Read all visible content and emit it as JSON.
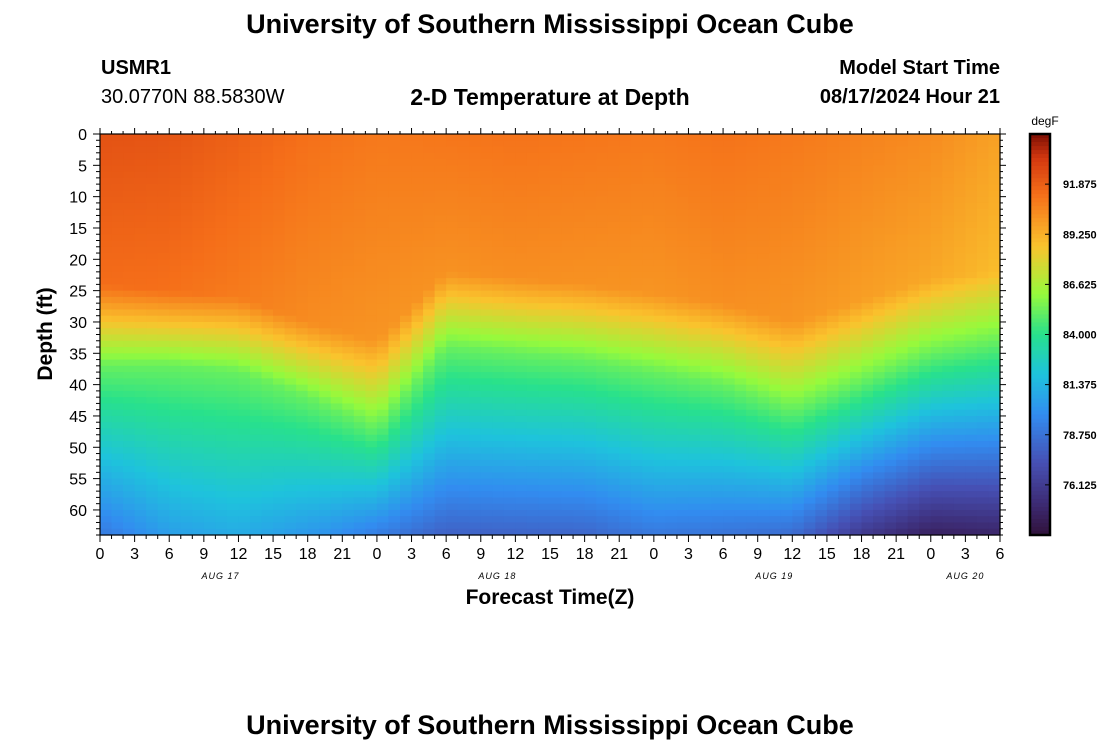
{
  "header": {
    "title": "University of Southern Mississippi Ocean Cube",
    "station_id": "USMR1",
    "location": "30.0770N  88.5830W",
    "chart_title": "2-D Temperature at Depth",
    "model_start_label": "Model Start Time",
    "model_start_value": "08/17/2024 Hour 21",
    "footer_title": "University of Southern Mississippi Ocean Cube"
  },
  "colorbar": {
    "unit_label": "degF",
    "tick_labels": [
      "91.875",
      "89.250",
      "86.625",
      "84.000",
      "81.375",
      "78.750",
      "76.125"
    ],
    "ticks": [
      91.875,
      89.25,
      86.625,
      84.0,
      81.375,
      78.75,
      76.125
    ],
    "range": [
      73.5,
      94.5
    ]
  },
  "chart_data": {
    "type": "heatmap",
    "title": "2-D Temperature at Depth",
    "xlabel": "Forecast Time(Z)",
    "ylabel": "Depth (ft)",
    "x_hours_range": [
      0,
      78
    ],
    "y_depth_range": [
      0,
      64
    ],
    "x_tick_labels": [
      "0",
      "3",
      "6",
      "9",
      "12",
      "15",
      "18",
      "21",
      "0",
      "3",
      "6",
      "9",
      "12",
      "15",
      "18",
      "21",
      "0",
      "3",
      "6",
      "9",
      "12",
      "15",
      "18",
      "21",
      "0",
      "3",
      "6"
    ],
    "date_labels": [
      {
        "text": "AUG 17",
        "hour": 12
      },
      {
        "text": "AUG 18",
        "hour": 36
      },
      {
        "text": "AUG 19",
        "hour": 60
      },
      {
        "text": "AUG 20",
        "hour": 75
      }
    ],
    "y_ticks": [
      0,
      5,
      10,
      15,
      20,
      25,
      30,
      35,
      40,
      45,
      50,
      55,
      60
    ],
    "y_tick_labels": [
      "0",
      "5",
      "10",
      "15",
      "20",
      "25",
      "30",
      "35",
      "40",
      "45",
      "50",
      "55",
      "60"
    ],
    "surface_temp_degF": [
      92.3,
      92.2,
      92.0,
      91.8,
      91.3,
      91.0,
      91.2,
      91.0,
      91.2,
      91.0,
      90.4,
      89.7
    ],
    "surface_temp_hours": [
      0,
      6,
      9,
      12,
      18,
      24,
      36,
      48,
      54,
      60,
      72,
      78
    ],
    "thermocline_top_depth_ft": [
      24,
      25,
      26,
      30,
      33,
      22,
      24,
      27,
      30,
      23,
      22
    ],
    "thermocline_bottom_depth_ft": [
      37,
      37,
      38,
      42,
      47,
      34,
      36,
      40,
      44,
      35,
      33
    ],
    "thermocline_hours": [
      0,
      6,
      12,
      18,
      24,
      30,
      42,
      54,
      60,
      72,
      78
    ],
    "bottom_temp_degF": [
      79.0,
      80.5,
      81.0,
      80.0,
      78.0,
      78.2,
      79.0,
      78.5,
      76.0,
      74.5,
      74.8
    ],
    "bottom_temp_hours": [
      0,
      6,
      12,
      20,
      30,
      42,
      48,
      60,
      66,
      72,
      78
    ]
  }
}
